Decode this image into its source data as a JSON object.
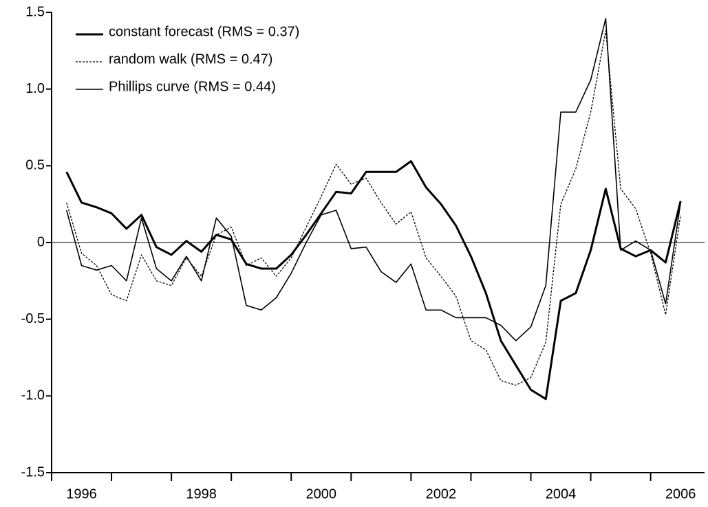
{
  "chart_data": {
    "type": "line",
    "x": [
      1996.25,
      1996.5,
      1996.75,
      1997,
      1997.25,
      1997.5,
      1997.75,
      1998,
      1998.25,
      1998.5,
      1998.75,
      1999,
      1999.25,
      1999.5,
      1999.75,
      2000,
      2000.25,
      2000.5,
      2000.75,
      2001,
      2001.25,
      2001.5,
      2001.75,
      2002,
      2002.25,
      2002.5,
      2002.75,
      2003,
      2003.25,
      2003.5,
      2003.75,
      2004,
      2004.25,
      2004.5,
      2004.75,
      2005,
      2005.25,
      2005.5,
      2005.75,
      2006,
      2006.25,
      2006.5
    ],
    "series": [
      {
        "name": "constant forecast (RMS = 0.37)",
        "color": "#000000",
        "line_width": 3,
        "dash": "solid",
        "values": [
          0.46,
          0.26,
          0.23,
          0.19,
          0.09,
          0.18,
          -0.03,
          -0.08,
          0.01,
          -0.06,
          0.05,
          0.02,
          -0.14,
          -0.17,
          -0.17,
          -0.08,
          0.05,
          0.19,
          0.33,
          0.32,
          0.46,
          0.46,
          0.46,
          0.53,
          0.36,
          0.25,
          0.11,
          -0.09,
          -0.33,
          -0.64,
          -0.8,
          -0.96,
          -1.02,
          -0.38,
          -0.33,
          -0.05,
          0.35,
          -0.04,
          -0.09,
          -0.05,
          -0.13,
          0.27
        ]
      },
      {
        "name": "random walk (RMS = 0.47)",
        "color": "#000000",
        "line_width": 1.3,
        "dash": "dotted",
        "values": [
          0.26,
          -0.07,
          -0.15,
          -0.34,
          -0.38,
          -0.08,
          -0.25,
          -0.28,
          -0.1,
          -0.22,
          0.05,
          0.1,
          -0.15,
          -0.1,
          -0.22,
          -0.1,
          0.1,
          0.3,
          0.51,
          0.38,
          0.42,
          0.26,
          0.12,
          0.2,
          -0.1,
          -0.22,
          -0.35,
          -0.64,
          -0.7,
          -0.9,
          -0.93,
          -0.88,
          -0.65,
          0.25,
          0.48,
          0.85,
          1.38,
          0.35,
          0.22,
          -0.07,
          -0.47,
          0.18
        ]
      },
      {
        "name": "Phillips curve (RMS = 0.44)",
        "color": "#000000",
        "line_width": 1.6,
        "dash": "solid",
        "values": [
          0.21,
          -0.15,
          -0.18,
          -0.15,
          -0.25,
          0.16,
          -0.17,
          -0.25,
          -0.09,
          -0.25,
          0.16,
          0.04,
          -0.41,
          -0.44,
          -0.36,
          -0.2,
          0.0,
          0.18,
          0.21,
          -0.04,
          -0.03,
          -0.19,
          -0.26,
          -0.14,
          -0.44,
          -0.44,
          -0.49,
          -0.49,
          -0.49,
          -0.54,
          -0.64,
          -0.55,
          -0.28,
          0.85,
          0.85,
          1.06,
          1.46,
          -0.05,
          0.01,
          -0.05,
          -0.4,
          0.26
        ]
      }
    ],
    "xlim": [
      1996,
      2006.9
    ],
    "xticks": [
      1996,
      1998,
      2000,
      2002,
      2004,
      2006
    ],
    "minor_xticks": [
      1997,
      1999,
      2001,
      2003,
      2005
    ],
    "ylim": [
      -1.5,
      1.5
    ],
    "yticks": [
      1.5,
      {
        "value": 1,
        "label": "1.0"
      },
      0.5,
      0,
      -0.5,
      {
        "value": -1,
        "label": "-1.0"
      },
      -1.5
    ],
    "zero_line": true,
    "legend": "top-left"
  }
}
